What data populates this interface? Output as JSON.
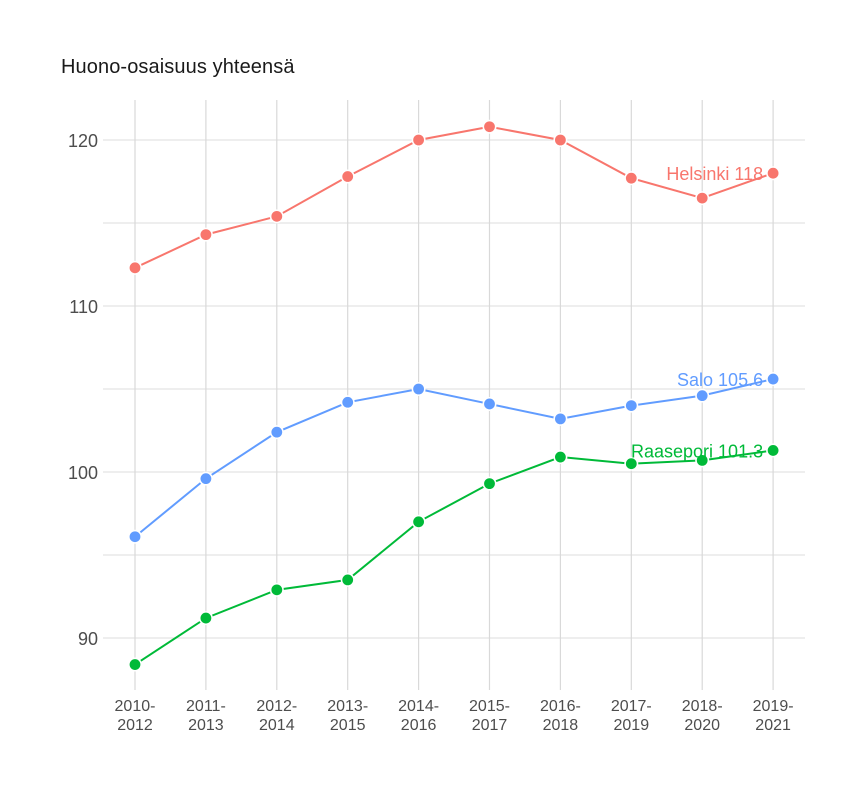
{
  "chart_data": {
    "type": "line",
    "title": "Huono-osaisuus yhteensä",
    "xlabel": "",
    "ylabel": "",
    "ylim": [
      86.8,
      122.5
    ],
    "yticks": [
      90,
      100,
      110,
      120
    ],
    "grid": true,
    "legend": "direct labels at end of lines",
    "categories": [
      "2010-2012",
      "2011-2013",
      "2012-2014",
      "2013-2015",
      "2014-2016",
      "2015-2017",
      "2016-2018",
      "2017-2019",
      "2018-2020",
      "2019-2021"
    ],
    "series": [
      {
        "name": "Helsinki",
        "color": "#F8766D",
        "label": "Helsinki 118",
        "values": [
          112.3,
          114.3,
          115.4,
          117.8,
          120.0,
          120.8,
          120.0,
          117.7,
          116.5,
          118.0
        ]
      },
      {
        "name": "Salo",
        "color": "#619CFF",
        "label": "Salo 105.6",
        "values": [
          96.1,
          99.6,
          102.4,
          104.2,
          105.0,
          104.1,
          103.2,
          104.0,
          104.6,
          105.6
        ]
      },
      {
        "name": "Raasepori",
        "color": "#00BA38",
        "label": "Raasepori 101.3",
        "values": [
          88.4,
          91.2,
          92.9,
          93.5,
          97.0,
          99.3,
          100.9,
          100.5,
          100.7,
          101.3
        ]
      }
    ]
  }
}
